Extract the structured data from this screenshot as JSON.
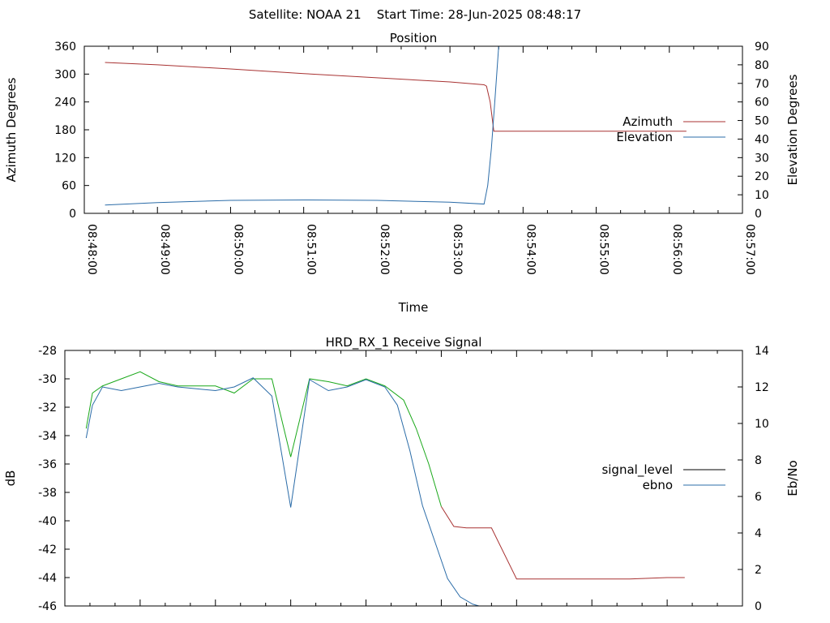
{
  "figure": {
    "header": "Satellite: NOAA 21    Start Time: 28-Jun-2025 08:48:17"
  },
  "chart_data": [
    {
      "type": "line",
      "title": "Position",
      "xlabel": "Time",
      "ylabel": "Azimuth Degrees",
      "y2label": "Elevation Degrees",
      "x_ticks": [
        "08:48:00",
        "08:49:00",
        "08:50:00",
        "08:51:00",
        "08:52:00",
        "08:53:00",
        "08:54:00",
        "08:55:00",
        "08:56:00",
        "08:57:00"
      ],
      "xlim": [
        "08:48:00",
        "08:57:00"
      ],
      "ylim": [
        0,
        360
      ],
      "y_ticks": [
        0,
        60,
        120,
        180,
        240,
        300,
        360
      ],
      "y2lim": [
        0,
        90
      ],
      "y2_ticks": [
        0,
        10,
        20,
        30,
        40,
        50,
        60,
        70,
        80,
        90
      ],
      "grid": false,
      "legend_position": "right",
      "series": [
        {
          "name": "Azimuth",
          "axis": "left",
          "color": "#a83232",
          "x": [
            "08:48:17",
            "08:49:00",
            "08:50:00",
            "08:51:00",
            "08:52:00",
            "08:53:00",
            "08:53:28",
            "08:53:30",
            "08:53:33",
            "08:53:36",
            "08:54:00",
            "08:55:00",
            "08:56:00",
            "08:56:14"
          ],
          "values": [
            325,
            320,
            311,
            301,
            292,
            283,
            277,
            274,
            240,
            177,
            177,
            177,
            177,
            177
          ]
        },
        {
          "name": "Elevation",
          "axis": "right",
          "color": "#2b6ca8",
          "x": [
            "08:48:17",
            "08:49:00",
            "08:50:00",
            "08:51:00",
            "08:52:00",
            "08:53:00",
            "08:53:28",
            "08:53:31",
            "08:53:34",
            "08:53:37",
            "08:53:40"
          ],
          "values": [
            4.5,
            5.8,
            7.0,
            7.2,
            7.0,
            6.0,
            5.0,
            15,
            35,
            62,
            90
          ]
        }
      ]
    },
    {
      "type": "line",
      "title": "HRD_RX_1 Receive Signal",
      "ylabel": "dB",
      "y2label": "Eb/No",
      "xlim": [
        "08:48:00",
        "08:57:00"
      ],
      "ylim": [
        -46,
        -28
      ],
      "y_ticks": [
        -46,
        -44,
        -42,
        -40,
        -38,
        -36,
        -34,
        -32,
        -30,
        -28
      ],
      "y2lim": [
        0,
        14
      ],
      "y2_ticks": [
        0,
        2,
        4,
        6,
        8,
        10,
        12,
        14
      ],
      "grid": false,
      "legend_position": "right",
      "series": [
        {
          "name": "signal_level",
          "axis": "left",
          "color_high": "#1aa81a",
          "color_low": "#a83232",
          "x": [
            "08:48:17",
            "08:48:22",
            "08:48:30",
            "08:48:45",
            "08:49:00",
            "08:49:15",
            "08:49:30",
            "08:50:00",
            "08:50:15",
            "08:50:30",
            "08:50:45",
            "08:51:00",
            "08:51:15",
            "08:51:30",
            "08:51:45",
            "08:52:00",
            "08:52:15",
            "08:52:30",
            "08:52:40",
            "08:52:50",
            "08:53:00",
            "08:53:10",
            "08:53:20",
            "08:53:30",
            "08:53:40",
            "08:54:00",
            "08:54:15",
            "08:54:30",
            "08:55:00",
            "08:55:30",
            "08:56:00",
            "08:56:14"
          ],
          "values": [
            -33.5,
            -31,
            -30.5,
            -30,
            -29.5,
            -30.2,
            -30.5,
            -30.5,
            -31,
            -30,
            -30,
            -35.5,
            -30,
            -30.2,
            -30.5,
            -30,
            -30.5,
            -31.5,
            -33.5,
            -36,
            -39,
            -40.4,
            -40.5,
            -40.5,
            -40.5,
            -44.1,
            -44.1,
            -44.1,
            -44.1,
            -44.1,
            -44.0,
            -44.0
          ]
        },
        {
          "name": "ebno",
          "axis": "right",
          "color": "#2b6ca8",
          "x": [
            "08:48:17",
            "08:48:22",
            "08:48:30",
            "08:48:45",
            "08:49:00",
            "08:49:15",
            "08:49:30",
            "08:50:00",
            "08:50:15",
            "08:50:30",
            "08:50:45",
            "08:51:00",
            "08:51:15",
            "08:51:30",
            "08:51:45",
            "08:52:00",
            "08:52:15",
            "08:52:25",
            "08:52:35",
            "08:52:45",
            "08:52:55",
            "08:53:05",
            "08:53:15",
            "08:53:25",
            "08:53:30"
          ],
          "values": [
            9.2,
            11,
            12,
            11.8,
            12,
            12.2,
            12,
            11.8,
            12,
            12.5,
            11.5,
            5.4,
            12.4,
            11.8,
            12,
            12.4,
            12,
            11,
            8.5,
            5.5,
            3.5,
            1.5,
            0.5,
            0.1,
            0
          ]
        }
      ]
    }
  ]
}
